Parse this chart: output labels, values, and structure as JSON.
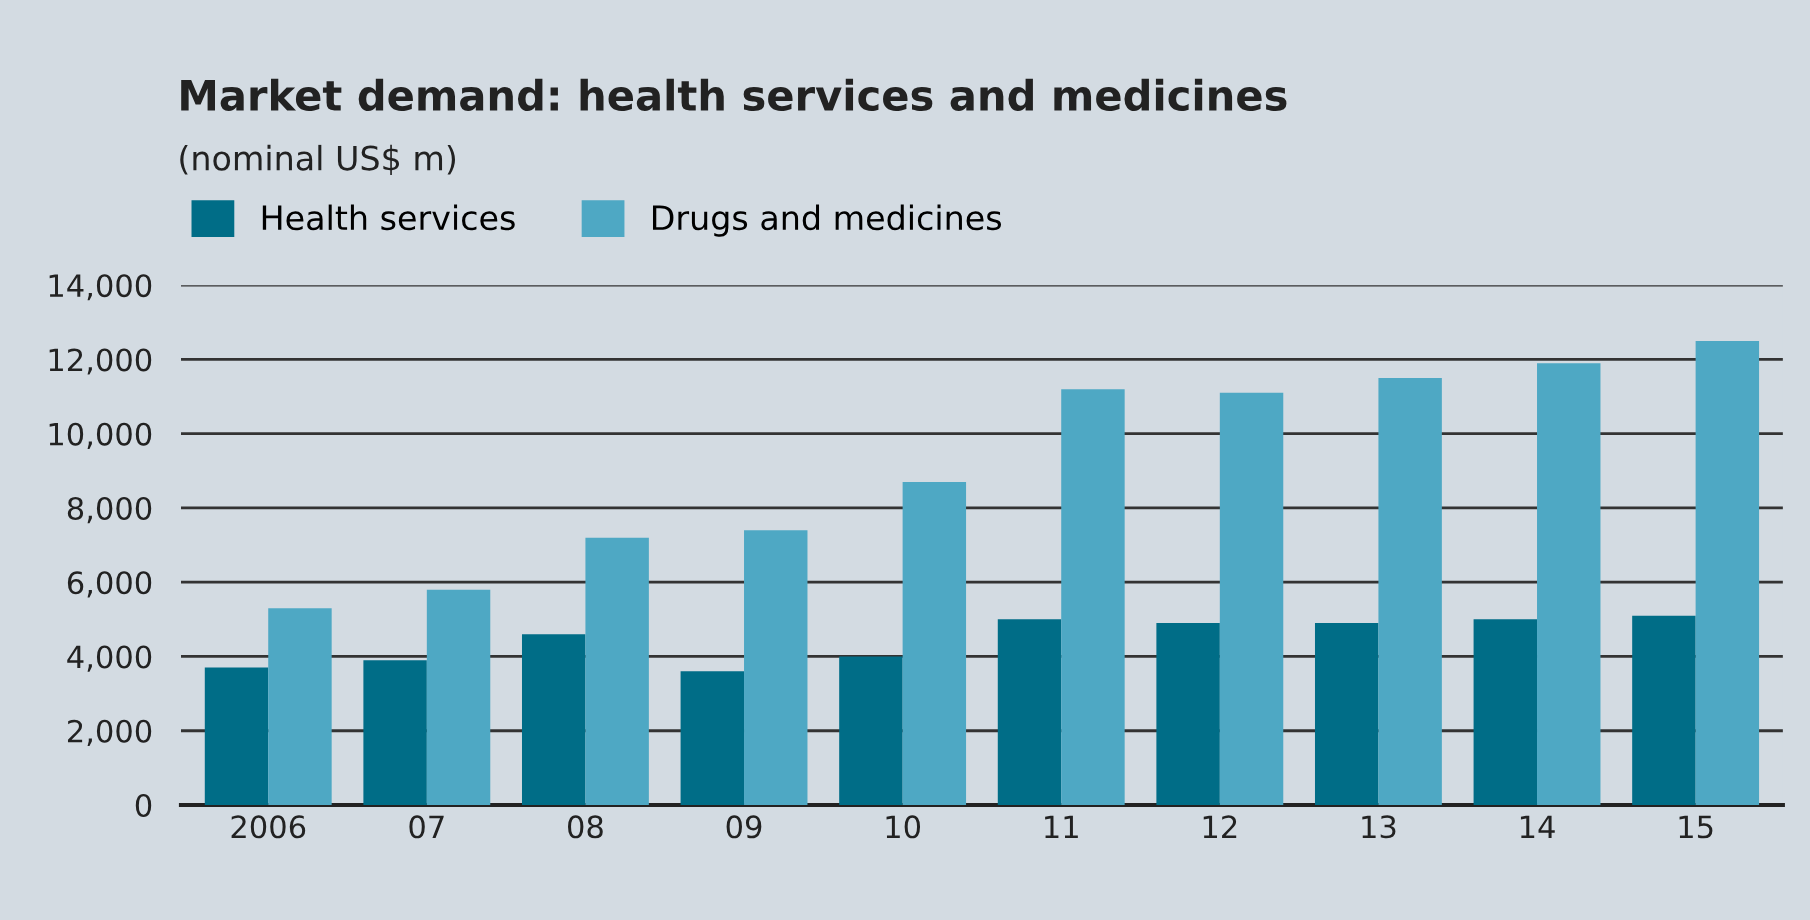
{
  "chart_data": {
    "type": "bar",
    "title": "Market demand: health services and medicines",
    "subtitle": "(nominal US$ m)",
    "categories": [
      "2006",
      "07",
      "08",
      "09",
      "10",
      "11",
      "12",
      "13",
      "14",
      "15"
    ],
    "series": [
      {
        "name": "Health services",
        "color": "#006d87",
        "values": [
          3700,
          3900,
          4600,
          3600,
          4000,
          5000,
          4900,
          4900,
          5000,
          5100
        ]
      },
      {
        "name": "Drugs and medicines",
        "color": "#4ea8c4",
        "values": [
          5300,
          5800,
          7200,
          7400,
          8700,
          11200,
          11100,
          11500,
          11900,
          12500
        ]
      }
    ],
    "ylim": [
      0,
      14000
    ],
    "yticks": [
      {
        "value": 0,
        "label": "0"
      },
      {
        "value": 2000,
        "label": "2,000"
      },
      {
        "value": 4000,
        "label": "4,000"
      },
      {
        "value": 6000,
        "label": "6,000"
      },
      {
        "value": 8000,
        "label": "8,000"
      },
      {
        "value": 10000,
        "label": "10,000"
      },
      {
        "value": 12000,
        "label": "12,000"
      },
      {
        "value": 14000,
        "label": "14,000"
      }
    ],
    "grid": "y",
    "legend": "top left"
  }
}
